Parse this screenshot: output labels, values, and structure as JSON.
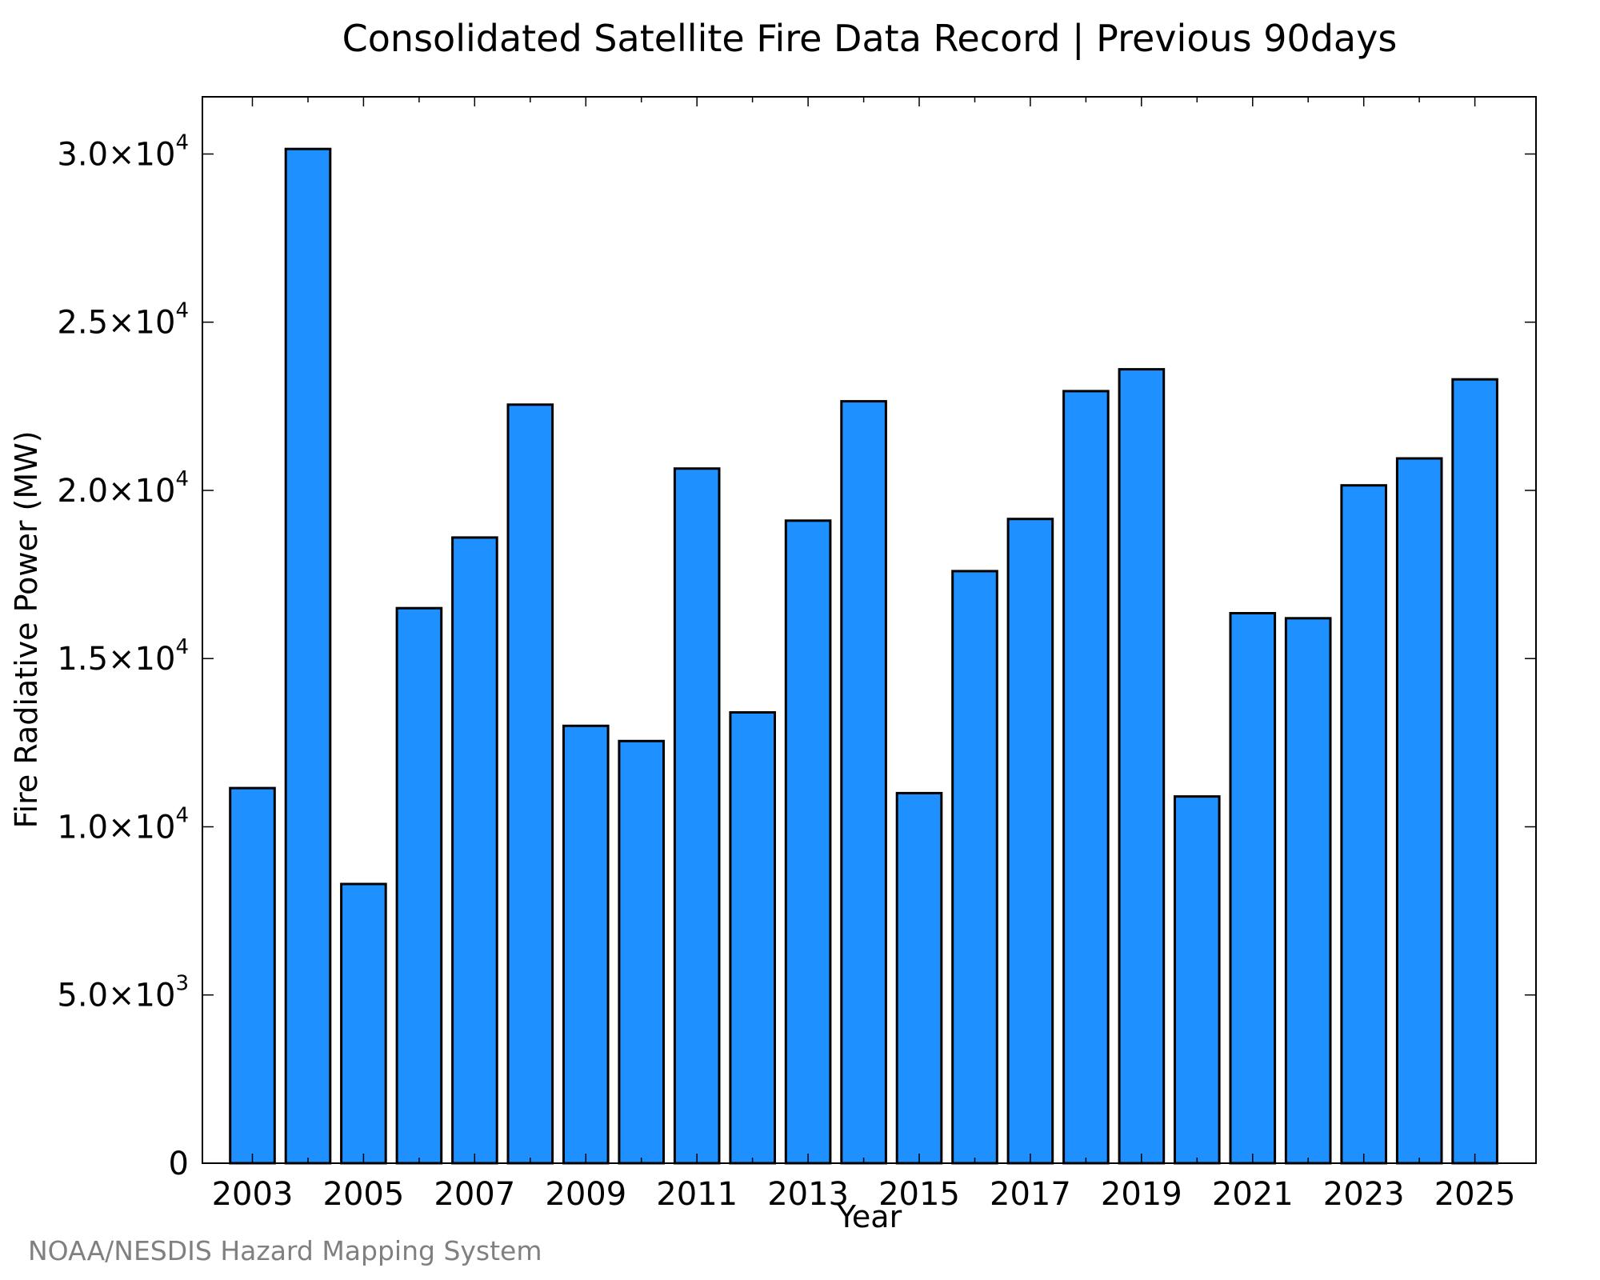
{
  "chart_data": {
    "type": "bar",
    "title": "Consolidated Satellite Fire Data Record | Previous 90days",
    "xlabel": "Year",
    "ylabel": "Fire Radiative Power (MW)",
    "credit": "NOAA/NESDIS Hazard Mapping System",
    "categories": [
      2003,
      2004,
      2005,
      2006,
      2007,
      2008,
      2009,
      2010,
      2011,
      2012,
      2013,
      2014,
      2015,
      2016,
      2017,
      2018,
      2019,
      2020,
      2021,
      2022,
      2023,
      2024,
      2025
    ],
    "values": [
      11150,
      30150,
      8300,
      16500,
      18600,
      22550,
      13000,
      12550,
      20650,
      13400,
      19100,
      22650,
      11000,
      17600,
      19150,
      22950,
      23600,
      10900,
      16350,
      16200,
      20150,
      20950,
      23300
    ],
    "ylim": [
      0,
      31700
    ],
    "xlim": [
      2002.1,
      2026.1
    ],
    "xticks": [
      {
        "value": 2003,
        "label": "2003"
      },
      {
        "value": 2005,
        "label": "2005"
      },
      {
        "value": 2007,
        "label": "2007"
      },
      {
        "value": 2009,
        "label": "2009"
      },
      {
        "value": 2011,
        "label": "2011"
      },
      {
        "value": 2013,
        "label": "2013"
      },
      {
        "value": 2015,
        "label": "2015"
      },
      {
        "value": 2017,
        "label": "2017"
      },
      {
        "value": 2019,
        "label": "2019"
      },
      {
        "value": 2021,
        "label": "2021"
      },
      {
        "value": 2023,
        "label": "2023"
      },
      {
        "value": 2025,
        "label": "2025"
      }
    ],
    "yticks": [
      {
        "value": 0,
        "mantissa": "0",
        "exponent": ""
      },
      {
        "value": 5000,
        "mantissa": "5.0×10",
        "exponent": "3"
      },
      {
        "value": 10000,
        "mantissa": "1.0×10",
        "exponent": "4"
      },
      {
        "value": 15000,
        "mantissa": "1.5×10",
        "exponent": "4"
      },
      {
        "value": 20000,
        "mantissa": "2.0×10",
        "exponent": "4"
      },
      {
        "value": 25000,
        "mantissa": "2.5×10",
        "exponent": "4"
      },
      {
        "value": 30000,
        "mantissa": "3.0×10",
        "exponent": "4"
      }
    ],
    "bar_color": "#1e90ff",
    "bar_edge_color": "#000000",
    "grid": false,
    "legend": "none"
  }
}
